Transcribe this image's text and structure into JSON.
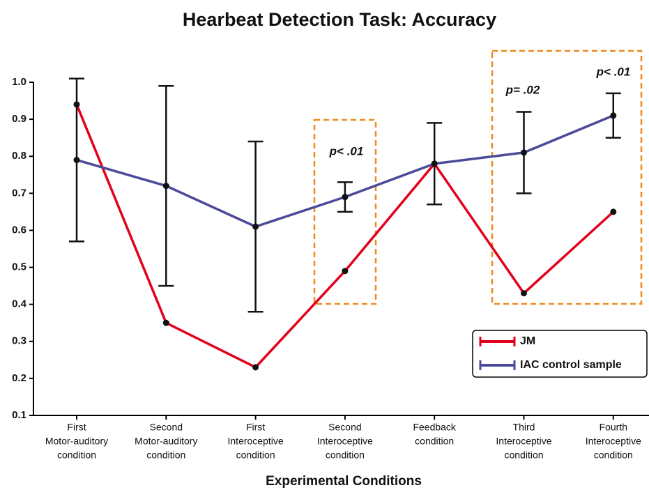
{
  "chart_data": {
    "type": "line",
    "title": "Hearbeat Detection Task: Accuracy",
    "x_label": "Experimental Conditions",
    "categories": [
      [
        "First",
        "Motor-auditory",
        "condition"
      ],
      [
        "Second",
        "Motor-auditory",
        "condition"
      ],
      [
        "First",
        "Interoceptive",
        "condition"
      ],
      [
        "Second",
        "Interoceptive",
        "condition"
      ],
      [
        "Feedback",
        "condition"
      ],
      [
        "Third",
        "Interoceptive",
        "condition"
      ],
      [
        "Fourth",
        "Interoceptive",
        "condition"
      ]
    ],
    "series": [
      {
        "name": "JM",
        "color": "#e3001b",
        "values": [
          0.94,
          0.35,
          0.23,
          0.49,
          0.78,
          0.43,
          0.65
        ]
      },
      {
        "name": "IAC control sample",
        "color": "#4b4a9a",
        "values": [
          0.79,
          0.72,
          0.61,
          0.69,
          0.78,
          0.81,
          0.91
        ],
        "errors": [
          0.22,
          0.27,
          0.23,
          0.04,
          0.11,
          0.11,
          0.06
        ]
      }
    ],
    "ylim": [
      0.1,
      1.0
    ],
    "yticks": [
      {
        "value": 1.0,
        "label": "1.0"
      },
      0.9,
      0.8,
      0.7,
      0.6,
      0.5,
      0.4,
      0.3,
      0.2,
      0.1
    ],
    "annotations": [
      "p< .01",
      "p= .02",
      "p< .01"
    ],
    "legend": "right"
  }
}
